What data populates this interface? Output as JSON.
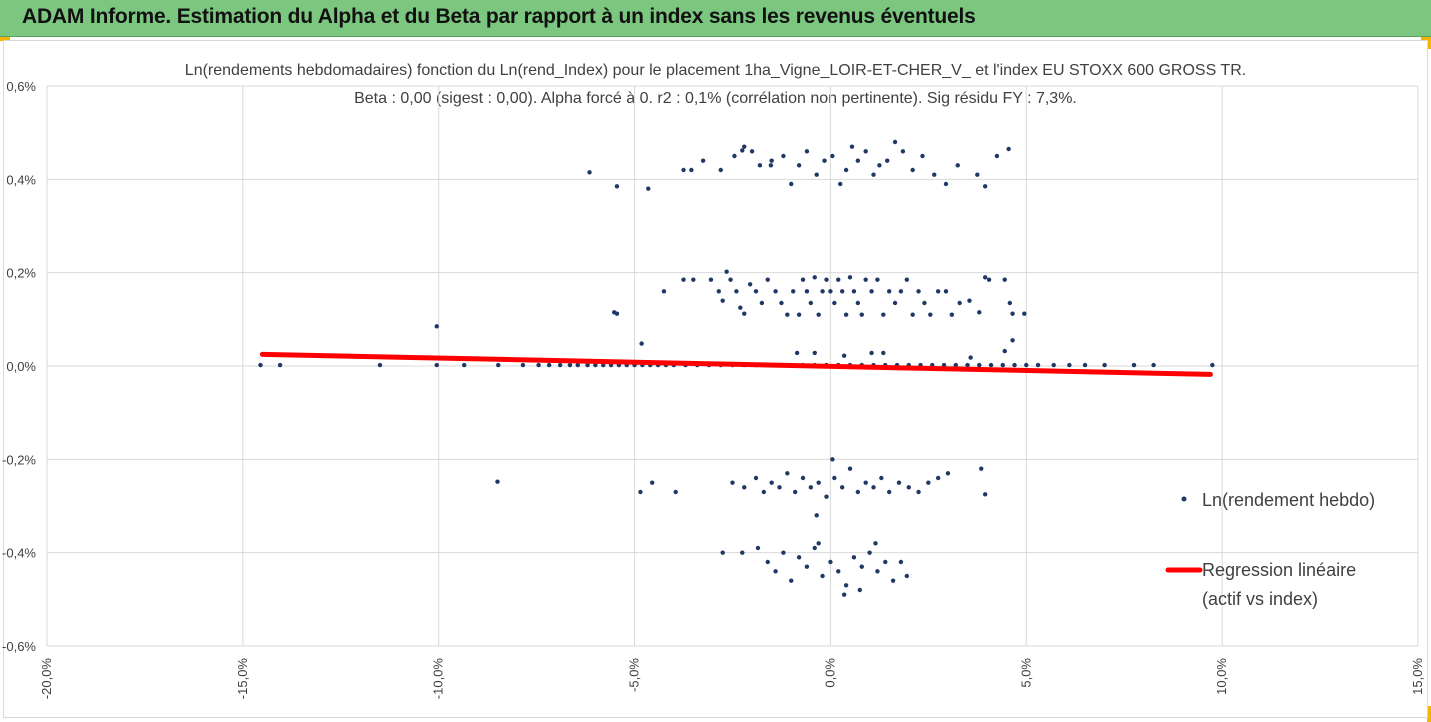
{
  "header": {
    "title": "ADAM Informe. Estimation du Alpha et du Beta par rapport à un index sans les revenus éventuels"
  },
  "colors": {
    "banner": "#7cc77f",
    "accent_corner": "#f5b400",
    "points": "#1f3864",
    "regression": "#ff0000",
    "grid": "#d9d9d9"
  },
  "chart_data": {
    "type": "scatter",
    "title": "Ln(rendements hebdomadaires) fonction du Ln(rend_Index)  pour le placement 1ha_Vigne_LOIR-ET-CHER_V_ et l'index EU STOXX 600 GROSS TR.",
    "subtitle": "Beta : 0,00 (sigest : 0,00). Alpha forcé à 0. r2 : 0,1% (corrélation non pertinente). Sig résidu FY : 7,3%.",
    "xlabel": "",
    "ylabel": "",
    "xlim": [
      -0.2,
      0.15
    ],
    "ylim": [
      -0.006,
      0.006
    ],
    "x_ticks": [
      "-20,0%",
      "-15,0%",
      "-10,0%",
      "-5,0%",
      "0,0%",
      "5,0%",
      "10,0%",
      "15,0%"
    ],
    "y_ticks": [
      "0,6%",
      "0,4%",
      "0,2%",
      "0,0%",
      "-0,2%",
      "-0,4%",
      "-0,6%"
    ],
    "grid": true,
    "legend_position": "right",
    "series": [
      {
        "name": "Ln(rendement hebdo)",
        "type": "scatter",
        "points": [
          [
            -0.1455,
            2e-05
          ],
          [
            -0.1405,
            2e-05
          ],
          [
            -0.115,
            2e-05
          ],
          [
            -0.1005,
            2e-05
          ],
          [
            -0.0935,
            2e-05
          ],
          [
            -0.0848,
            2e-05
          ],
          [
            -0.0785,
            2e-05
          ],
          [
            -0.0745,
            2e-05
          ],
          [
            -0.0718,
            2e-05
          ],
          [
            -0.069,
            2e-05
          ],
          [
            -0.0665,
            2e-05
          ],
          [
            -0.0645,
            2e-05
          ],
          [
            -0.062,
            2e-05
          ],
          [
            -0.06,
            2e-05
          ],
          [
            -0.058,
            2e-05
          ],
          [
            -0.056,
            2e-05
          ],
          [
            -0.054,
            2e-05
          ],
          [
            -0.052,
            2e-05
          ],
          [
            -0.05,
            2e-05
          ],
          [
            -0.048,
            2e-05
          ],
          [
            -0.046,
            2e-05
          ],
          [
            -0.044,
            2e-05
          ],
          [
            -0.042,
            2e-05
          ],
          [
            -0.04,
            2e-05
          ],
          [
            -0.037,
            2e-05
          ],
          [
            -0.034,
            2e-05
          ],
          [
            -0.031,
            2e-05
          ],
          [
            -0.028,
            2e-05
          ],
          [
            -0.025,
            2e-05
          ],
          [
            -0.022,
            2e-05
          ],
          [
            -0.019,
            2e-05
          ],
          [
            -0.016,
            2e-05
          ],
          [
            -0.013,
            2e-05
          ],
          [
            -0.01,
            2e-05
          ],
          [
            -0.007,
            2e-05
          ],
          [
            -0.004,
            2e-05
          ],
          [
            -0.001,
            2e-05
          ],
          [
            0.002,
            2e-05
          ],
          [
            0.005,
            2e-05
          ],
          [
            0.008,
            2e-05
          ],
          [
            0.011,
            2e-05
          ],
          [
            0.014,
            2e-05
          ],
          [
            0.017,
            2e-05
          ],
          [
            0.02,
            2e-05
          ],
          [
            0.023,
            2e-05
          ],
          [
            0.026,
            2e-05
          ],
          [
            0.029,
            2e-05
          ],
          [
            0.032,
            2e-05
          ],
          [
            0.035,
            2e-05
          ],
          [
            0.038,
            2e-05
          ],
          [
            0.041,
            2e-05
          ],
          [
            0.044,
            2e-05
          ],
          [
            0.047,
            2e-05
          ],
          [
            0.05,
            2e-05
          ],
          [
            0.053,
            2e-05
          ],
          [
            0.057,
            2e-05
          ],
          [
            0.061,
            2e-05
          ],
          [
            0.065,
            2e-05
          ],
          [
            0.07,
            2e-05
          ],
          [
            0.0775,
            2e-05
          ],
          [
            0.0825,
            2e-05
          ],
          [
            0.0975,
            2e-05
          ],
          [
            -0.1005,
            0.00085
          ],
          [
            -0.0552,
            0.00115
          ],
          [
            -0.0545,
            0.00112
          ],
          [
            -0.0482,
            0.00048
          ],
          [
            -0.0085,
            0.00028
          ],
          [
            -0.004,
            0.00028
          ],
          [
            0.0035,
            0.00022
          ],
          [
            0.0105,
            0.00028
          ],
          [
            0.0135,
            0.00028
          ],
          [
            0.0358,
            0.00018
          ],
          [
            0.0445,
            0.00032
          ],
          [
            0.0465,
            0.00055
          ],
          [
            -0.0425,
            0.0016
          ],
          [
            -0.0375,
            0.00185
          ],
          [
            -0.035,
            0.00185
          ],
          [
            -0.0305,
            0.00185
          ],
          [
            -0.0285,
            0.0016
          ],
          [
            -0.0275,
            0.0014
          ],
          [
            -0.0265,
            0.00202
          ],
          [
            -0.0255,
            0.00185
          ],
          [
            -0.024,
            0.0016
          ],
          [
            -0.023,
            0.00125
          ],
          [
            -0.022,
            0.00112
          ],
          [
            -0.0205,
            0.00175
          ],
          [
            -0.019,
            0.0016
          ],
          [
            -0.0175,
            0.00135
          ],
          [
            -0.016,
            0.00185
          ],
          [
            -0.014,
            0.0016
          ],
          [
            -0.0125,
            0.00135
          ],
          [
            -0.011,
            0.0011
          ],
          [
            -0.0095,
            0.0016
          ],
          [
            -0.008,
            0.0011
          ],
          [
            -0.007,
            0.00185
          ],
          [
            -0.006,
            0.0016
          ],
          [
            -0.005,
            0.00135
          ],
          [
            -0.004,
            0.0019
          ],
          [
            -0.003,
            0.0011
          ],
          [
            -0.002,
            0.0016
          ],
          [
            -0.001,
            0.00185
          ],
          [
            0.0,
            0.0016
          ],
          [
            0.001,
            0.00135
          ],
          [
            0.002,
            0.00185
          ],
          [
            0.003,
            0.0016
          ],
          [
            0.004,
            0.0011
          ],
          [
            0.005,
            0.0019
          ],
          [
            0.006,
            0.0016
          ],
          [
            0.007,
            0.00135
          ],
          [
            0.008,
            0.0011
          ],
          [
            0.009,
            0.00185
          ],
          [
            0.0105,
            0.0016
          ],
          [
            0.012,
            0.00185
          ],
          [
            0.0135,
            0.0011
          ],
          [
            0.015,
            0.0016
          ],
          [
            0.0165,
            0.00135
          ],
          [
            0.018,
            0.0016
          ],
          [
            0.0195,
            0.00185
          ],
          [
            0.021,
            0.0011
          ],
          [
            0.0225,
            0.0016
          ],
          [
            0.024,
            0.00135
          ],
          [
            0.0255,
            0.0011
          ],
          [
            0.0275,
            0.0016
          ],
          [
            0.0295,
            0.0016
          ],
          [
            0.031,
            0.0011
          ],
          [
            0.033,
            0.00135
          ],
          [
            0.0355,
            0.0014
          ],
          [
            0.038,
            0.00115
          ],
          [
            0.0395,
            0.0019
          ],
          [
            0.0405,
            0.00185
          ],
          [
            0.0445,
            0.00185
          ],
          [
            0.0458,
            0.00135
          ],
          [
            0.0465,
            0.00112
          ],
          [
            0.0495,
            0.00112
          ],
          [
            -0.0355,
            0.0042
          ],
          [
            -0.0325,
            0.0044
          ],
          [
            -0.028,
            0.0042
          ],
          [
            -0.0245,
            0.0045
          ],
          [
            -0.022,
            0.0047
          ],
          [
            -0.02,
            0.0046
          ],
          [
            -0.018,
            0.0043
          ],
          [
            -0.015,
            0.0044
          ],
          [
            -0.012,
            0.0045
          ],
          [
            -0.01,
            0.0039
          ],
          [
            -0.008,
            0.0043
          ],
          [
            -0.006,
            0.0046
          ],
          [
            -0.0035,
            0.0041
          ],
          [
            -0.0015,
            0.0044
          ],
          [
            0.0005,
            0.0045
          ],
          [
            0.0025,
            0.0039
          ],
          [
            0.004,
            0.0042
          ],
          [
            0.0055,
            0.0047
          ],
          [
            0.007,
            0.0044
          ],
          [
            0.009,
            0.0046
          ],
          [
            0.011,
            0.0041
          ],
          [
            0.0125,
            0.0043
          ],
          [
            0.0145,
            0.0044
          ],
          [
            0.0165,
            0.0048
          ],
          [
            0.0185,
            0.0046
          ],
          [
            0.021,
            0.0042
          ],
          [
            0.0235,
            0.0045
          ],
          [
            0.0265,
            0.0041
          ],
          [
            0.0295,
            0.0039
          ],
          [
            0.0325,
            0.0043
          ],
          [
            0.0375,
            0.0041
          ],
          [
            0.0395,
            0.00385
          ],
          [
            0.0425,
            0.0045
          ],
          [
            0.0455,
            0.00465
          ],
          [
            -0.0615,
            0.00415
          ],
          [
            -0.0545,
            0.00385
          ],
          [
            -0.0465,
            0.0038
          ],
          [
            -0.0375,
            0.0042
          ],
          [
            -0.0225,
            0.00462
          ],
          [
            -0.0152,
            0.0043
          ],
          [
            -0.0485,
            -0.0027
          ],
          [
            -0.0455,
            -0.0025
          ],
          [
            -0.0395,
            -0.0027
          ],
          [
            -0.025,
            -0.0025
          ],
          [
            -0.022,
            -0.0026
          ],
          [
            -0.019,
            -0.0024
          ],
          [
            -0.017,
            -0.0027
          ],
          [
            -0.015,
            -0.0025
          ],
          [
            -0.013,
            -0.0026
          ],
          [
            -0.011,
            -0.0023
          ],
          [
            -0.009,
            -0.0027
          ],
          [
            -0.007,
            -0.0024
          ],
          [
            -0.005,
            -0.0026
          ],
          [
            -0.003,
            -0.0025
          ],
          [
            -0.001,
            -0.0028
          ],
          [
            0.001,
            -0.0024
          ],
          [
            0.003,
            -0.0026
          ],
          [
            0.005,
            -0.0022
          ],
          [
            0.007,
            -0.0027
          ],
          [
            0.009,
            -0.0025
          ],
          [
            0.011,
            -0.0026
          ],
          [
            0.013,
            -0.0024
          ],
          [
            0.015,
            -0.0027
          ],
          [
            0.0175,
            -0.0025
          ],
          [
            0.02,
            -0.0026
          ],
          [
            0.0225,
            -0.0027
          ],
          [
            0.025,
            -0.0025
          ],
          [
            0.0275,
            -0.0024
          ],
          [
            0.03,
            -0.0023
          ],
          [
            0.0385,
            -0.0022
          ],
          [
            0.0395,
            -0.00275
          ],
          [
            -0.085,
            -0.00248
          ],
          [
            -0.0035,
            -0.0032
          ],
          [
            0.0005,
            -0.002
          ],
          [
            -0.0275,
            -0.004
          ],
          [
            -0.0225,
            -0.004
          ],
          [
            -0.0185,
            -0.0039
          ],
          [
            -0.016,
            -0.0042
          ],
          [
            -0.014,
            -0.0044
          ],
          [
            -0.012,
            -0.004
          ],
          [
            -0.01,
            -0.0046
          ],
          [
            -0.008,
            -0.0041
          ],
          [
            -0.006,
            -0.0043
          ],
          [
            -0.004,
            -0.0039
          ],
          [
            -0.002,
            -0.0045
          ],
          [
            0.0,
            -0.0042
          ],
          [
            0.002,
            -0.0044
          ],
          [
            0.004,
            -0.0047
          ],
          [
            0.006,
            -0.0041
          ],
          [
            0.008,
            -0.0043
          ],
          [
            0.01,
            -0.004
          ],
          [
            0.012,
            -0.0044
          ],
          [
            0.014,
            -0.0042
          ],
          [
            0.016,
            -0.0046
          ],
          [
            0.018,
            -0.0042
          ],
          [
            0.0195,
            -0.0045
          ],
          [
            0.0075,
            -0.0048
          ],
          [
            0.0035,
            -0.0049
          ],
          [
            -0.003,
            -0.0038
          ],
          [
            0.0115,
            -0.0038
          ]
        ]
      },
      {
        "name": "Regression linéaire (actif vs index)",
        "type": "line",
        "points": [
          [
            -0.145,
            0.00025
          ],
          [
            0.097,
            -0.00018
          ]
        ]
      }
    ]
  },
  "legend": {
    "scatter_label": "Ln(rendement hebdo)",
    "line_label_1": "Regression linéaire",
    "line_label_2": "(actif vs index)"
  }
}
